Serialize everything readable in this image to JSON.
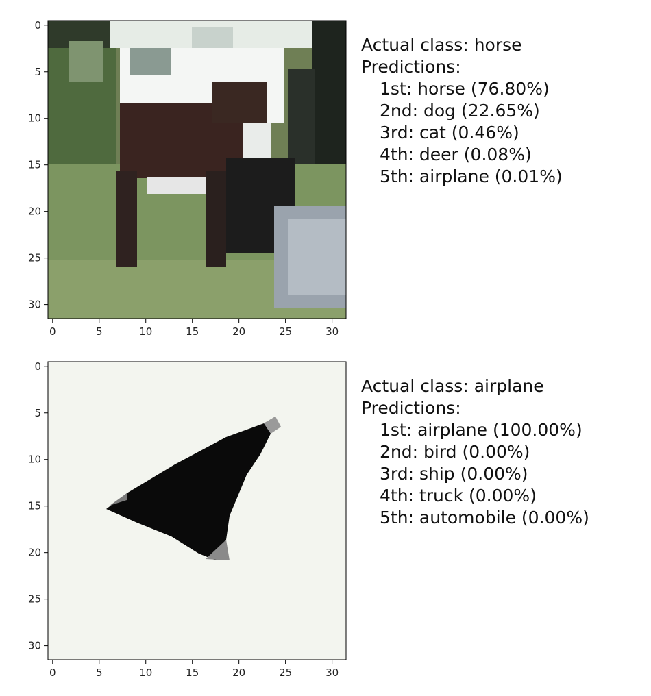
{
  "panels": [
    {
      "image_subject": "horse",
      "actual_label": "Actual class: horse",
      "predictions_label": "Predictions:",
      "predictions": [
        "1st: horse (76.80%)",
        "2nd: dog (22.65%)",
        "3rd: cat (0.46%)",
        "4th: deer (0.08%)",
        "5th: airplane (0.01%)"
      ]
    },
    {
      "image_subject": "airplane",
      "actual_label": "Actual class: airplane",
      "predictions_label": "Predictions:",
      "predictions": [
        "1st: airplane (100.00%)",
        "2nd: bird (0.00%)",
        "3rd: ship (0.00%)",
        "4th: truck (0.00%)",
        "5th: automobile (0.00%)"
      ]
    }
  ],
  "axis_ticks": {
    "x": [
      "0",
      "5",
      "10",
      "15",
      "20",
      "25",
      "30"
    ],
    "y": [
      "0",
      "5",
      "10",
      "15",
      "20",
      "25",
      "30"
    ]
  }
}
